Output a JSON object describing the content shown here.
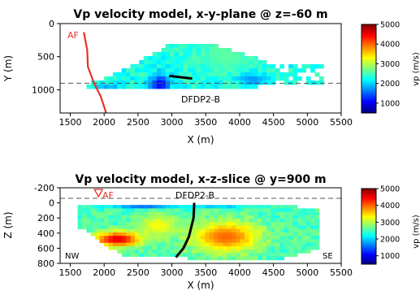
{
  "chart_data": [
    {
      "type": "heatmap",
      "title": "Vp velocity model, x-y-plane @ z=-60 m",
      "xlabel": "X (m)",
      "ylabel": "Y (m)",
      "xlim": [
        1350,
        5500
      ],
      "ylim": [
        1350,
        0
      ],
      "y_inverted": true,
      "xticks": [
        1500,
        2000,
        2500,
        3000,
        3500,
        4000,
        4500,
        5000,
        5500
      ],
      "yticks": [
        0,
        500,
        1000
      ],
      "grid": false,
      "colorbar": {
        "label": "vp (m/s)",
        "ticks": [
          1000,
          2000,
          3000,
          4000,
          5000
        ],
        "range": [
          500,
          5000
        ],
        "colormap": "jet"
      },
      "fault": {
        "label": "AF",
        "color": "#e8312a",
        "points": [
          [
            1700,
            130
          ],
          [
            1750,
            400
          ],
          [
            1760,
            650
          ],
          [
            1850,
            900
          ],
          [
            1950,
            1100
          ],
          [
            2030,
            1350
          ]
        ]
      },
      "well": {
        "label": "DFDP2-B",
        "color": "#000000",
        "points": [
          [
            2960,
            790
          ],
          [
            3300,
            830
          ]
        ]
      },
      "reference_line": {
        "y": 900,
        "style": "dashed"
      },
      "field": {
        "background": 2300,
        "core": [
          [
            1800,
            900
          ],
          [
            2300,
            700
          ],
          [
            3000,
            300
          ],
          [
            3600,
            300
          ],
          [
            4200,
            500
          ],
          [
            4800,
            800
          ],
          [
            4300,
            950
          ],
          [
            3500,
            1000
          ],
          [
            2500,
            980
          ],
          [
            1700,
            960
          ]
        ],
        "speckle": [
          [
            4300,
            600
          ],
          [
            5250,
            600
          ],
          [
            5250,
            950
          ],
          [
            4300,
            950
          ]
        ],
        "blobs": [
          {
            "x": 2830,
            "y": 930,
            "rx": 150,
            "ry": 150,
            "v": 1000
          },
          {
            "x": 2050,
            "y": 1000,
            "rx": 220,
            "ry": 70,
            "v": 1600
          },
          {
            "x": 2950,
            "y": 1080,
            "rx": 150,
            "ry": 70,
            "v": 4800
          },
          {
            "x": 3800,
            "y": 500,
            "rx": 450,
            "ry": 220,
            "v": 2600
          },
          {
            "x": 4200,
            "y": 850,
            "rx": 200,
            "ry": 100,
            "v": 1700
          }
        ]
      }
    },
    {
      "type": "heatmap",
      "title": "Vp velocity model, x-z-slice @ y=900 m",
      "xlabel": "X (m)",
      "ylabel": "Z (m)",
      "xlim": [
        1350,
        5500
      ],
      "ylim": [
        800,
        -200
      ],
      "y_inverted": true,
      "xticks": [
        1500,
        2000,
        2500,
        3000,
        3500,
        4000,
        4500,
        5000,
        5500
      ],
      "yticks": [
        -200,
        0,
        200,
        400,
        600,
        800
      ],
      "grid": false,
      "colorbar": {
        "label": "vp (m/s)",
        "ticks": [
          1000,
          2000,
          3000,
          4000,
          5000
        ],
        "range": [
          500,
          5000
        ],
        "colormap": "jet"
      },
      "fault": {
        "label": "AF",
        "color": "#e8312a",
        "x": 2000,
        "marker": "inverted-triangle"
      },
      "well": {
        "label": "DFDP2-B",
        "color": "#000000",
        "points": [
          [
            3330,
            0
          ],
          [
            3320,
            200
          ],
          [
            3250,
            450
          ],
          [
            3170,
            600
          ],
          [
            3060,
            720
          ]
        ]
      },
      "reference_line": {
        "y": -60,
        "style": "dashed"
      },
      "corner_labels": {
        "left": "NW",
        "right": "SE"
      },
      "field": {
        "background": 2500,
        "core": [
          [
            1600,
            20
          ],
          [
            4600,
            20
          ],
          [
            5200,
            100
          ],
          [
            5200,
            600
          ],
          [
            4600,
            750
          ],
          [
            2300,
            720
          ],
          [
            1600,
            300
          ]
        ],
        "blobs": [
          {
            "x": 2600,
            "y": 20,
            "rx": 500,
            "ry": 50,
            "v": 1100
          },
          {
            "x": 3700,
            "y": 20,
            "rx": 400,
            "ry": 40,
            "v": 1500
          },
          {
            "x": 2200,
            "y": 480,
            "rx": 350,
            "ry": 100,
            "v": 4600
          },
          {
            "x": 3800,
            "y": 450,
            "rx": 500,
            "ry": 200,
            "v": 4000
          },
          {
            "x": 2800,
            "y": 300,
            "rx": 300,
            "ry": 150,
            "v": 3300
          }
        ]
      }
    }
  ]
}
